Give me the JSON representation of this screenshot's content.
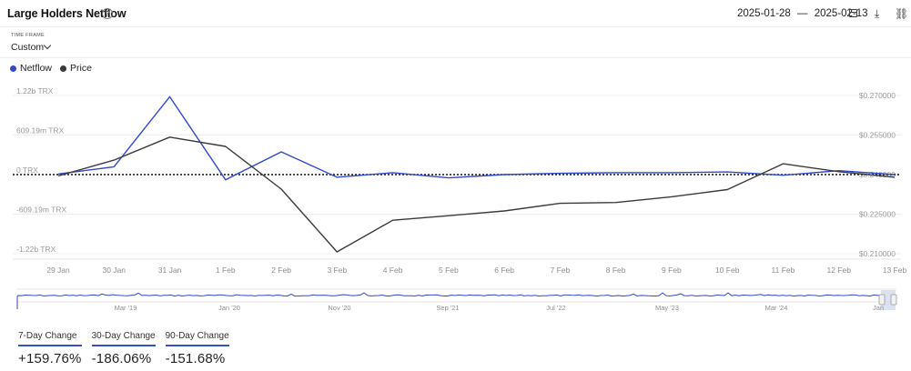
{
  "header": {
    "title": "Large Holders Netflow",
    "help_icon": "?",
    "date_from": "2025-01-28",
    "date_sep": "—",
    "date_to": "2025-02-13",
    "calendar_icon": "calendar-icon",
    "download_icon": "download-icon",
    "link_icon": "link-icon"
  },
  "time_frame": {
    "label": "TIME FRAME",
    "value": "Custom"
  },
  "legend": [
    {
      "name": "Netflow",
      "color": "#2f49c9"
    },
    {
      "name": "Price",
      "color": "#3a3a3a"
    }
  ],
  "chart_data": {
    "type": "line",
    "x": [
      "29 Jan",
      "30 Jan",
      "31 Jan",
      "1 Feb",
      "2 Feb",
      "3 Feb",
      "4 Feb",
      "5 Feb",
      "6 Feb",
      "7 Feb",
      "8 Feb",
      "9 Feb",
      "10 Feb",
      "11 Feb",
      "12 Feb",
      "13 Feb"
    ],
    "left_axis": {
      "ticks": [
        "1.22b TRX",
        "609.19m TRX",
        "0 TRX",
        "-609.19m TRX",
        "-1.22b TRX"
      ],
      "tick_values": [
        1220000000,
        609190000,
        0,
        -609190000,
        -1220000000
      ],
      "ylim": [
        -1220000000,
        1220000000
      ]
    },
    "right_axis": {
      "ticks": [
        "$0.270000",
        "$0.255000",
        "$0.240000",
        "$0.225000",
        "$0.210000"
      ],
      "tick_values": [
        0.27,
        0.255,
        0.24,
        0.225,
        0.21
      ],
      "ylim": [
        0.21,
        0.27
      ]
    },
    "series": [
      {
        "name": "Netflow",
        "axis": "left",
        "color": "#2f49c9",
        "values": [
          10000000,
          120000000,
          1200000000,
          -80000000,
          350000000,
          -40000000,
          30000000,
          -50000000,
          0,
          20000000,
          30000000,
          30000000,
          40000000,
          -10000000,
          60000000,
          0
        ]
      },
      {
        "name": "Price",
        "axis": "right",
        "color": "#3a3a3a",
        "values": [
          0.2395,
          0.2455,
          0.2542,
          0.2507,
          0.2345,
          0.2107,
          0.2227,
          0.2244,
          0.2262,
          0.2291,
          0.2294,
          0.2316,
          0.2343,
          0.2441,
          0.2411,
          0.239
        ]
      }
    ],
    "zero_line": "dotted",
    "grid": true,
    "legend_position": "top-left"
  },
  "navigator": {
    "labels": [
      "Mar '19",
      "Jan '20",
      "Nov '20",
      "Sep '21",
      "Jul '22",
      "May '23",
      "Mar '24",
      "Jan"
    ],
    "handle_left_icon": "handle-grip-icon",
    "handle_right_icon": "handle-grip-icon"
  },
  "changes": [
    {
      "label": "7-Day Change",
      "value": "+159.76%"
    },
    {
      "label": "30-Day Change",
      "value": "-186.06%"
    },
    {
      "label": "90-Day Change",
      "value": "-151.68%"
    }
  ]
}
